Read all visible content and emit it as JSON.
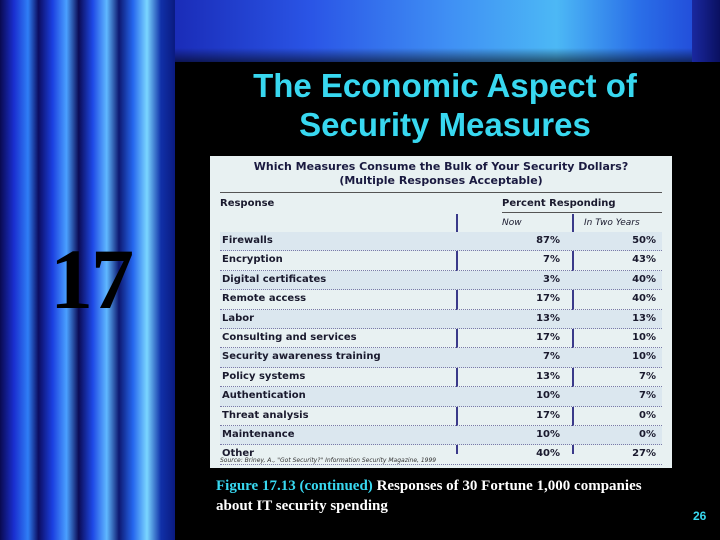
{
  "slide": {
    "chapter": "17",
    "title_line1": "The Economic Aspect of",
    "title_line2": "Security Measures",
    "page_number": "26"
  },
  "table": {
    "title_line1": "Which Measures Consume the Bulk of Your Security Dollars?",
    "title_line2": "(Multiple Responses Acceptable)",
    "header_response": "Response",
    "header_percent": "Percent Responding",
    "sub_now": "Now",
    "sub_two_years": "In Two Years",
    "rows": [
      {
        "response": "Firewalls",
        "now": "87%",
        "two_years": "50%"
      },
      {
        "response": "Encryption",
        "now": "7%",
        "two_years": "43%"
      },
      {
        "response": "Digital certificates",
        "now": "3%",
        "two_years": "40%"
      },
      {
        "response": "Remote access",
        "now": "17%",
        "two_years": "40%"
      },
      {
        "response": "Labor",
        "now": "13%",
        "two_years": "13%"
      },
      {
        "response": "Consulting and services",
        "now": "17%",
        "two_years": "10%"
      },
      {
        "response": "Security awareness training",
        "now": "7%",
        "two_years": "10%"
      },
      {
        "response": "Policy systems",
        "now": "13%",
        "two_years": "7%"
      },
      {
        "response": "Authentication",
        "now": "10%",
        "two_years": "7%"
      },
      {
        "response": "Threat analysis",
        "now": "17%",
        "two_years": "0%"
      },
      {
        "response": "Maintenance",
        "now": "10%",
        "two_years": "0%"
      },
      {
        "response": "Other",
        "now": "40%",
        "two_years": "27%"
      }
    ],
    "source": "Source: Briney, A., \"Got Security?\" Information Security Magazine, 1999"
  },
  "caption": {
    "figure_label": "Figure 17.13 (continued)",
    "text": " Responses of 30 Fortune 1,000 companies about IT security spending"
  },
  "colors": {
    "title": "#38d8f0",
    "background": "#000000",
    "table_bg": "#e8f1f2"
  }
}
